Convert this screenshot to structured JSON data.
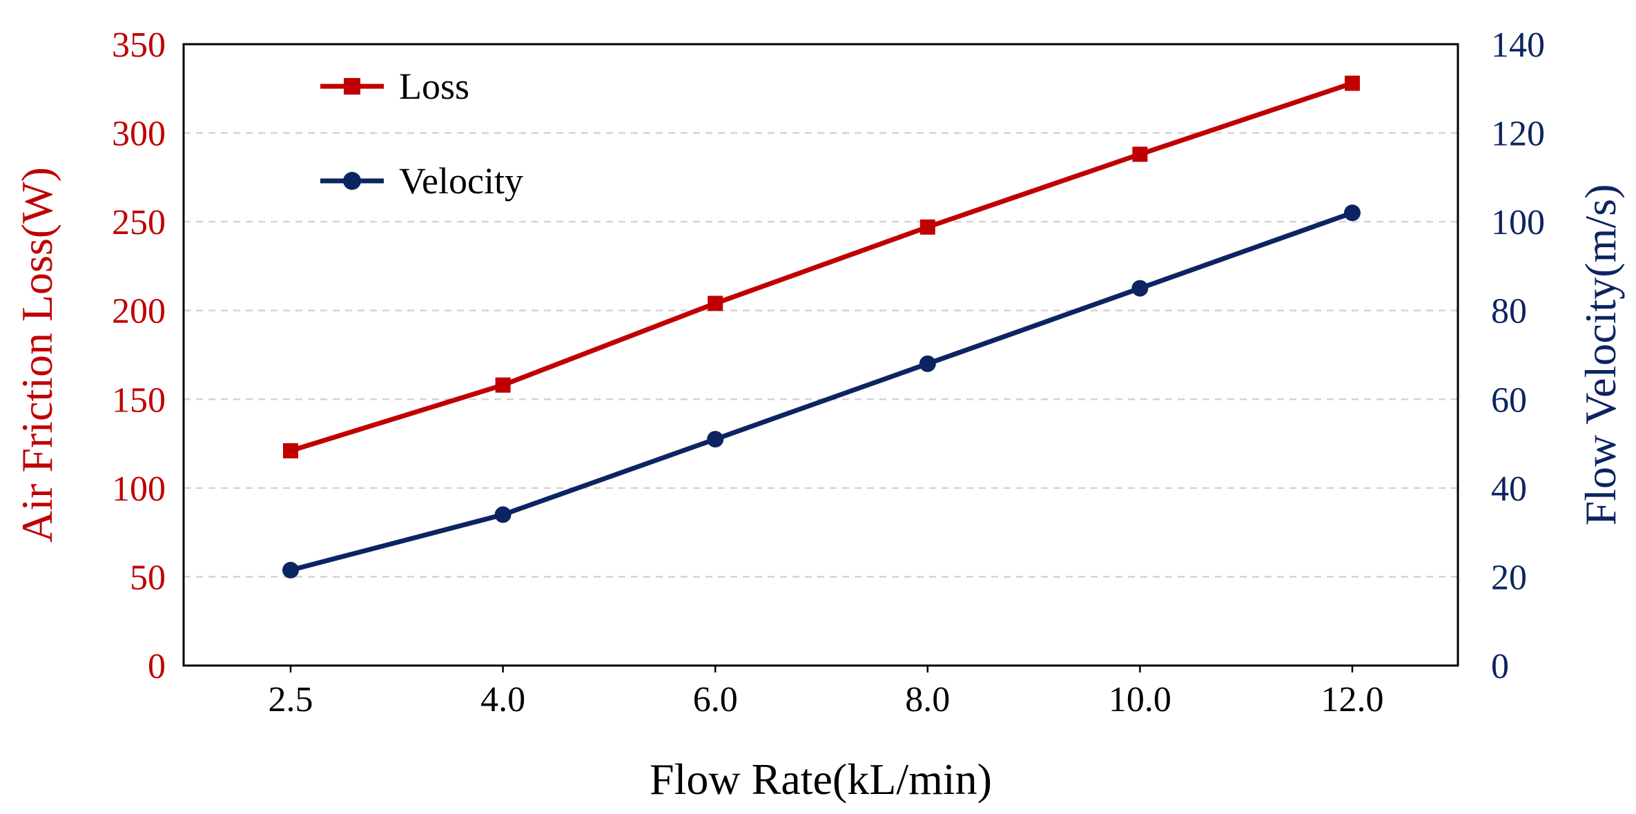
{
  "chart_data": {
    "type": "line",
    "categories": [
      "2.5",
      "4.0",
      "6.0",
      "8.0",
      "10.0",
      "12.0"
    ],
    "xlabel": "Flow Rate(kL/min)",
    "y_left": {
      "label": "Air Friction Loss(W)",
      "ylim": [
        0,
        350
      ],
      "ticks": [
        0,
        50,
        100,
        150,
        200,
        250,
        300,
        350
      ],
      "color": "#C00000"
    },
    "y_right": {
      "label": "Flow Velocity(m/s)",
      "ylim": [
        0,
        140
      ],
      "ticks": [
        0,
        20,
        40,
        60,
        80,
        100,
        120,
        140
      ],
      "color": "#0C2461"
    },
    "series": [
      {
        "name": "Loss",
        "axis": "left",
        "marker": "square",
        "color": "#C00000",
        "values": [
          121,
          158,
          204,
          247,
          288,
          328
        ]
      },
      {
        "name": "Velocity",
        "axis": "right",
        "marker": "circle",
        "color": "#0C2461",
        "values": [
          21.5,
          34,
          51,
          68,
          85,
          102
        ]
      }
    ],
    "grid": "horizontal-dashed",
    "legend": "top-left"
  }
}
